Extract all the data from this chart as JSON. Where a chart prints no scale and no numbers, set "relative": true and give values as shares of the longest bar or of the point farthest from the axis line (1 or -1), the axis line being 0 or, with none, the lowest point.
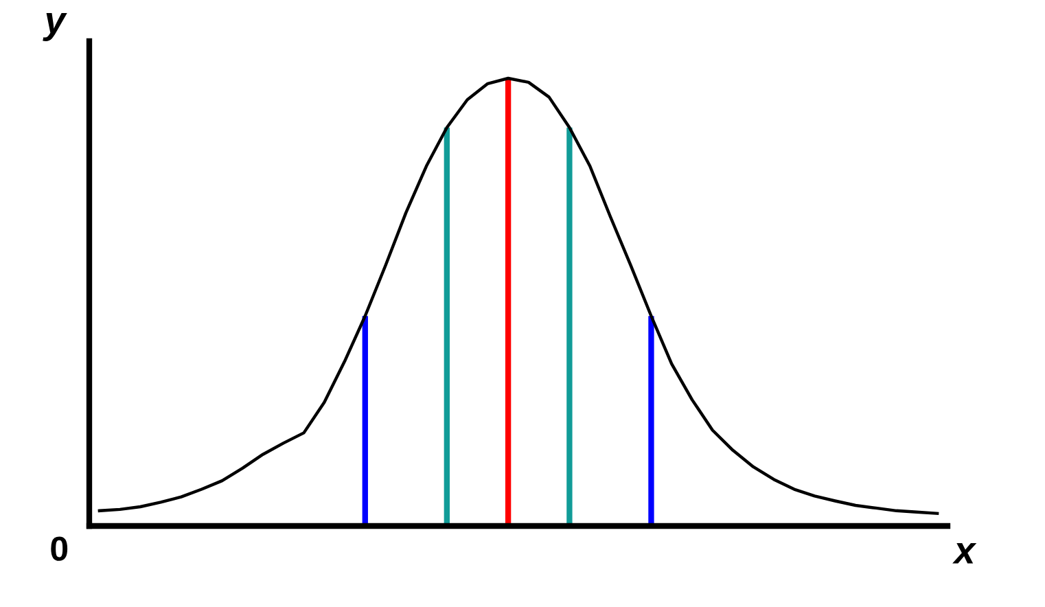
{
  "chart_data": {
    "type": "line",
    "relative": true,
    "xlabel": "x",
    "ylabel": "y",
    "annotations": [
      "0"
    ],
    "marker": "none",
    "line_style": "solid",
    "categories": [
      null,
      null,
      null,
      null,
      null,
      null,
      null,
      null,
      null,
      null,
      null,
      null,
      null,
      null,
      null,
      null,
      null,
      null,
      null,
      null,
      null,
      null,
      null,
      null,
      null,
      null,
      null,
      null,
      null,
      null,
      null,
      null,
      null,
      null,
      null,
      null,
      null,
      null,
      null,
      null,
      null,
      null
    ],
    "series": [
      {
        "color": "#000000",
        "values": [
          0.034,
          0.037,
          0.043,
          0.053,
          0.065,
          0.082,
          0.101,
          0.129,
          0.16,
          0.185,
          0.208,
          0.276,
          0.368,
          0.469,
          0.582,
          0.7,
          0.804,
          0.89,
          0.952,
          0.988,
          1.0,
          0.991,
          0.958,
          0.89,
          0.804,
          0.691,
          0.582,
          0.469,
          0.362,
          0.282,
          0.214,
          0.169,
          0.132,
          0.104,
          0.082,
          0.067,
          0.056,
          0.046,
          0.04,
          0.034,
          0.031,
          0.028
        ]
      }
    ]
  }
}
